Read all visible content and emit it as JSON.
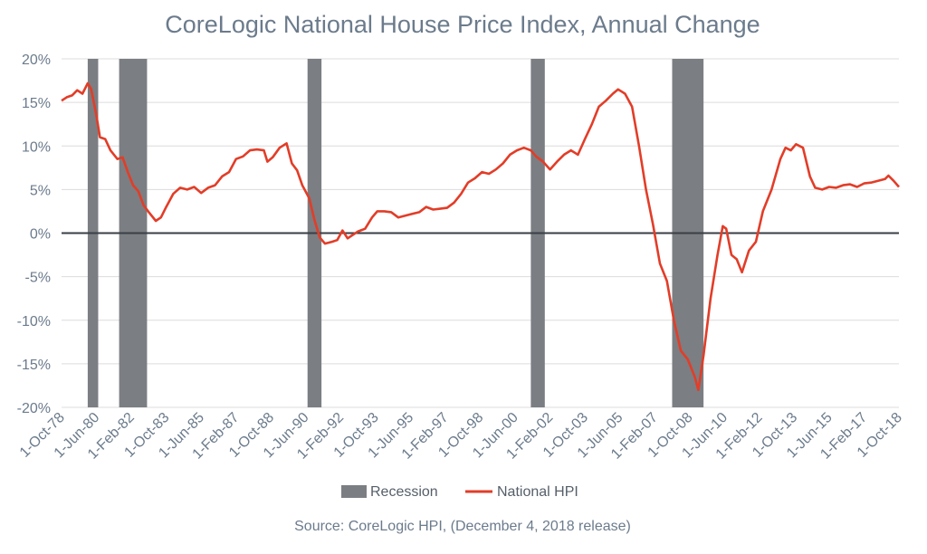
{
  "chart_data": {
    "type": "line",
    "title": "CoreLogic National House Price Index, Annual Change",
    "source": "Source: CoreLogic HPI, (December 4, 2018 release)",
    "ylim": [
      -20,
      20
    ],
    "yticks": [
      20,
      15,
      10,
      5,
      0,
      -5,
      -10,
      -15,
      -20
    ],
    "ytick_labels": [
      "20%",
      "15%",
      "10%",
      "5%",
      "0%",
      "-5%",
      "-10%",
      "-15%",
      "-20%"
    ],
    "xlim": [
      "1978-10",
      "2018-10"
    ],
    "xticks": [
      {
        "date": "1978-10",
        "label": "1-Oct-78"
      },
      {
        "date": "1980-06",
        "label": "1-Jun-80"
      },
      {
        "date": "1982-02",
        "label": "1-Feb-82"
      },
      {
        "date": "1983-10",
        "label": "1-Oct-83"
      },
      {
        "date": "1985-06",
        "label": "1-Jun-85"
      },
      {
        "date": "1987-02",
        "label": "1-Feb-87"
      },
      {
        "date": "1988-10",
        "label": "1-Oct-88"
      },
      {
        "date": "1990-06",
        "label": "1-Jun-90"
      },
      {
        "date": "1992-02",
        "label": "1-Feb-92"
      },
      {
        "date": "1993-10",
        "label": "1-Oct-93"
      },
      {
        "date": "1995-06",
        "label": "1-Jun-95"
      },
      {
        "date": "1997-02",
        "label": "1-Feb-97"
      },
      {
        "date": "1998-10",
        "label": "1-Oct-98"
      },
      {
        "date": "2000-06",
        "label": "1-Jun-00"
      },
      {
        "date": "2002-02",
        "label": "1-Feb-02"
      },
      {
        "date": "2003-10",
        "label": "1-Oct-03"
      },
      {
        "date": "2005-06",
        "label": "1-Jun-05"
      },
      {
        "date": "2007-02",
        "label": "1-Feb-07"
      },
      {
        "date": "2008-10",
        "label": "1-Oct-08"
      },
      {
        "date": "2010-06",
        "label": "1-Jun-10"
      },
      {
        "date": "2012-02",
        "label": "1-Feb-12"
      },
      {
        "date": "2013-10",
        "label": "1-Oct-13"
      },
      {
        "date": "2015-06",
        "label": "1-Jun-15"
      },
      {
        "date": "2017-02",
        "label": "1-Feb-17"
      },
      {
        "date": "2018-10",
        "label": "1-Oct-18"
      }
    ],
    "grid": true,
    "legend_position": "bottom",
    "series": [
      {
        "name": "National HPI",
        "color": "#e23d28",
        "points": [
          [
            "1978-10",
            15.2
          ],
          [
            "1979-01",
            15.6
          ],
          [
            "1979-04",
            15.8
          ],
          [
            "1979-07",
            16.4
          ],
          [
            "1979-10",
            16.0
          ],
          [
            "1980-01",
            17.2
          ],
          [
            "1980-03",
            16.5
          ],
          [
            "1980-06",
            13.5
          ],
          [
            "1980-08",
            11.0
          ],
          [
            "1980-11",
            10.8
          ],
          [
            "1981-02",
            9.5
          ],
          [
            "1981-06",
            8.5
          ],
          [
            "1981-09",
            8.7
          ],
          [
            "1981-12",
            7.0
          ],
          [
            "1982-03",
            5.5
          ],
          [
            "1982-06",
            4.8
          ],
          [
            "1982-09",
            3.2
          ],
          [
            "1982-12",
            2.4
          ],
          [
            "1983-04",
            1.4
          ],
          [
            "1983-07",
            1.8
          ],
          [
            "1983-10",
            3.0
          ],
          [
            "1984-02",
            4.5
          ],
          [
            "1984-06",
            5.2
          ],
          [
            "1984-10",
            5.0
          ],
          [
            "1985-02",
            5.3
          ],
          [
            "1985-06",
            4.6
          ],
          [
            "1985-10",
            5.2
          ],
          [
            "1986-02",
            5.5
          ],
          [
            "1986-06",
            6.5
          ],
          [
            "1986-10",
            7.0
          ],
          [
            "1987-02",
            8.5
          ],
          [
            "1987-06",
            8.8
          ],
          [
            "1987-10",
            9.5
          ],
          [
            "1988-02",
            9.6
          ],
          [
            "1988-06",
            9.5
          ],
          [
            "1988-08",
            8.2
          ],
          [
            "1988-11",
            8.7
          ],
          [
            "1989-03",
            9.8
          ],
          [
            "1989-07",
            10.3
          ],
          [
            "1989-10",
            8.0
          ],
          [
            "1990-01",
            7.2
          ],
          [
            "1990-04",
            5.5
          ],
          [
            "1990-08",
            4.0
          ],
          [
            "1990-11",
            1.5
          ],
          [
            "1991-02",
            -0.5
          ],
          [
            "1991-05",
            -1.2
          ],
          [
            "1991-09",
            -1.0
          ],
          [
            "1991-12",
            -0.8
          ],
          [
            "1992-03",
            0.3
          ],
          [
            "1992-06",
            -0.6
          ],
          [
            "1992-09",
            -0.2
          ],
          [
            "1992-12",
            0.2
          ],
          [
            "1993-04",
            0.5
          ],
          [
            "1993-08",
            1.8
          ],
          [
            "1993-11",
            2.5
          ],
          [
            "1994-03",
            2.5
          ],
          [
            "1994-07",
            2.4
          ],
          [
            "1994-11",
            1.8
          ],
          [
            "1995-03",
            2.0
          ],
          [
            "1995-07",
            2.2
          ],
          [
            "1995-11",
            2.4
          ],
          [
            "1996-03",
            3.0
          ],
          [
            "1996-07",
            2.7
          ],
          [
            "1996-11",
            2.8
          ],
          [
            "1997-03",
            2.9
          ],
          [
            "1997-07",
            3.5
          ],
          [
            "1997-11",
            4.5
          ],
          [
            "1998-03",
            5.8
          ],
          [
            "1998-07",
            6.3
          ],
          [
            "1998-11",
            7.0
          ],
          [
            "1999-03",
            6.8
          ],
          [
            "1999-07",
            7.3
          ],
          [
            "1999-11",
            8.0
          ],
          [
            "2000-03",
            9.0
          ],
          [
            "2000-07",
            9.5
          ],
          [
            "2000-11",
            9.8
          ],
          [
            "2001-03",
            9.5
          ],
          [
            "2001-06",
            8.8
          ],
          [
            "2001-10",
            8.2
          ],
          [
            "2002-02",
            7.3
          ],
          [
            "2002-06",
            8.2
          ],
          [
            "2002-10",
            9.0
          ],
          [
            "2003-02",
            9.5
          ],
          [
            "2003-06",
            9.0
          ],
          [
            "2003-10",
            10.8
          ],
          [
            "2004-02",
            12.5
          ],
          [
            "2004-06",
            14.5
          ],
          [
            "2004-10",
            15.2
          ],
          [
            "2005-02",
            16.0
          ],
          [
            "2005-05",
            16.5
          ],
          [
            "2005-09",
            16.0
          ],
          [
            "2006-01",
            14.5
          ],
          [
            "2006-05",
            10.0
          ],
          [
            "2006-09",
            5.0
          ],
          [
            "2007-01",
            1.0
          ],
          [
            "2007-05",
            -3.5
          ],
          [
            "2007-09",
            -5.5
          ],
          [
            "2008-01",
            -10.0
          ],
          [
            "2008-05",
            -13.5
          ],
          [
            "2008-09",
            -14.5
          ],
          [
            "2009-01",
            -16.5
          ],
          [
            "2009-03",
            -18.0
          ],
          [
            "2009-06",
            -14.0
          ],
          [
            "2009-10",
            -7.5
          ],
          [
            "2010-02",
            -2.5
          ],
          [
            "2010-05",
            0.8
          ],
          [
            "2010-07",
            0.5
          ],
          [
            "2010-10",
            -2.5
          ],
          [
            "2011-01",
            -3.0
          ],
          [
            "2011-04",
            -4.5
          ],
          [
            "2011-08",
            -2.0
          ],
          [
            "2011-12",
            -1.0
          ],
          [
            "2012-04",
            2.5
          ],
          [
            "2012-09",
            5.0
          ],
          [
            "2013-02",
            8.5
          ],
          [
            "2013-05",
            9.8
          ],
          [
            "2013-08",
            9.5
          ],
          [
            "2013-11",
            10.2
          ],
          [
            "2014-03",
            9.8
          ],
          [
            "2014-07",
            6.5
          ],
          [
            "2014-10",
            5.2
          ],
          [
            "2015-02",
            5.0
          ],
          [
            "2015-06",
            5.3
          ],
          [
            "2015-10",
            5.2
          ],
          [
            "2016-02",
            5.5
          ],
          [
            "2016-06",
            5.6
          ],
          [
            "2016-10",
            5.3
          ],
          [
            "2017-02",
            5.7
          ],
          [
            "2017-06",
            5.8
          ],
          [
            "2017-10",
            6.0
          ],
          [
            "2018-02",
            6.2
          ],
          [
            "2018-04",
            6.6
          ],
          [
            "2018-07",
            6.0
          ],
          [
            "2018-10",
            5.3
          ]
        ]
      }
    ],
    "recessions": {
      "name": "Recession",
      "color": "#7b7e82",
      "periods": [
        [
          "1980-01",
          "1980-07"
        ],
        [
          "1981-07",
          "1982-11"
        ],
        [
          "1990-07",
          "1991-03"
        ],
        [
          "2001-03",
          "2001-11"
        ],
        [
          "2007-12",
          "2009-06"
        ]
      ]
    },
    "zero_line_color": "#3a3f47"
  }
}
